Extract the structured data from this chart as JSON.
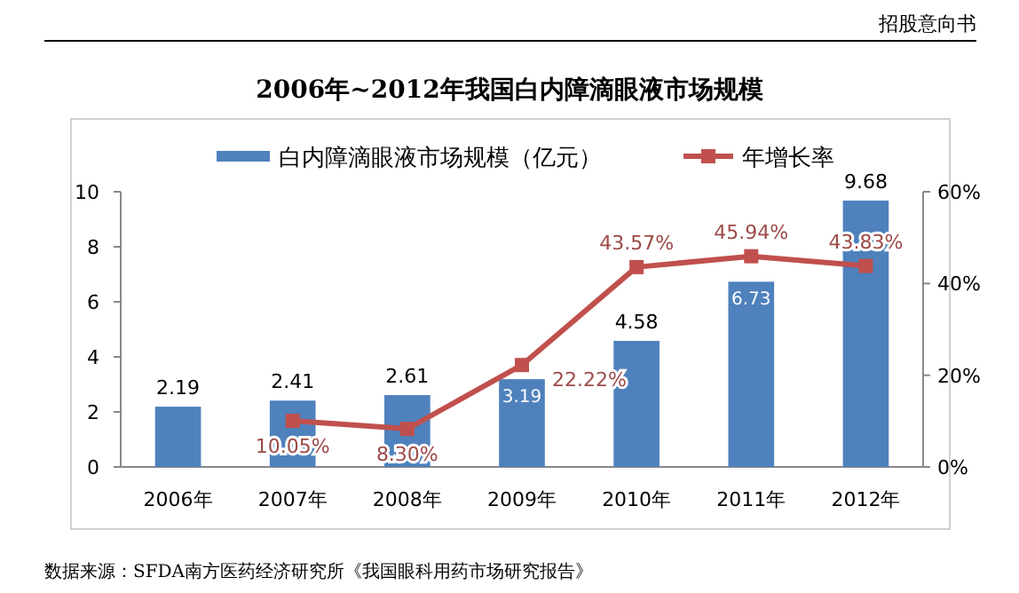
{
  "chart_data": {
    "type": "bar",
    "title": "2006年~2012年我国白内障滴眼液市场规模",
    "categories": [
      "2006年",
      "2007年",
      "2008年",
      "2009年",
      "2010年",
      "2011年",
      "2012年"
    ],
    "series": [
      {
        "name": "白内障滴眼液市场规模（亿元）",
        "color": "#4f81bd",
        "values": [
          2.19,
          2.41,
          2.61,
          3.19,
          4.58,
          6.73,
          9.68
        ]
      },
      {
        "name": "年增长率",
        "type": "line",
        "axis": "y2",
        "color": "#c0504d",
        "marker": "square",
        "values": [
          null,
          10.05,
          8.3,
          22.22,
          43.57,
          45.94,
          43.83
        ],
        "value_labels": [
          null,
          "10.05%",
          "8.30%",
          "22.22%",
          "43.57%",
          "45.94%",
          "43.83%"
        ]
      }
    ],
    "data_labels": true,
    "ylim": [
      0,
      10
    ],
    "yticks": [
      0,
      2,
      4,
      6,
      8,
      10
    ],
    "y2lim": [
      0,
      60
    ],
    "y2ticks": [
      {
        "value": 0,
        "label": "0%"
      },
      {
        "value": 20,
        "label": "20%"
      },
      {
        "value": 40,
        "label": "40%"
      },
      {
        "value": 60,
        "label": "60%"
      }
    ],
    "legend": "top",
    "annotations": [
      "招股意向书",
      "数据来源：SFDA南方医药经济研究所《我国眼科用药市场研究报告》"
    ]
  }
}
